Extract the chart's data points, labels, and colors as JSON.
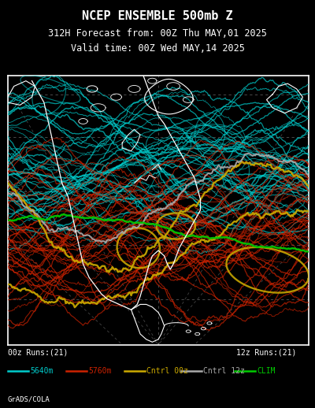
{
  "title_line1": "NCEP ENSEMBLE 500mb Z",
  "title_line2": "312H Forecast from: 00Z Thu MAY,01 2025",
  "title_line3": "Valid time: 00Z Wed MAY,14 2025",
  "background_color": "#000000",
  "map_border_color": "#ffffff",
  "grid_color": "#aaaaaa",
  "coastline_color": "#ffffff",
  "title_color": "#ffffff",
  "label_00z": "00z Runs:(21)",
  "label_12z": "12z Runs:(21)",
  "legend_items": [
    {
      "label": "5640m",
      "color": "#00cccc",
      "lw": 1.8
    },
    {
      "label": "5760m",
      "color": "#cc2200",
      "lw": 1.8
    },
    {
      "label": "Cntrl 00z",
      "color": "#ccaa00",
      "lw": 1.8
    },
    {
      "label": "Cntrl 12z",
      "color": "#aaaaaa",
      "lw": 1.8
    },
    {
      "label": "CLIM",
      "color": "#00cc00",
      "lw": 1.8
    }
  ],
  "footer_text": "GrADS/COLA",
  "fig_width": 4.0,
  "fig_height": 5.18,
  "dpi": 100,
  "seed": 42,
  "n_cyan_lines": 42,
  "n_red_lines": 42,
  "n_yellow_lines": 2,
  "n_gray_lines": 1,
  "n_green_lines": 1
}
